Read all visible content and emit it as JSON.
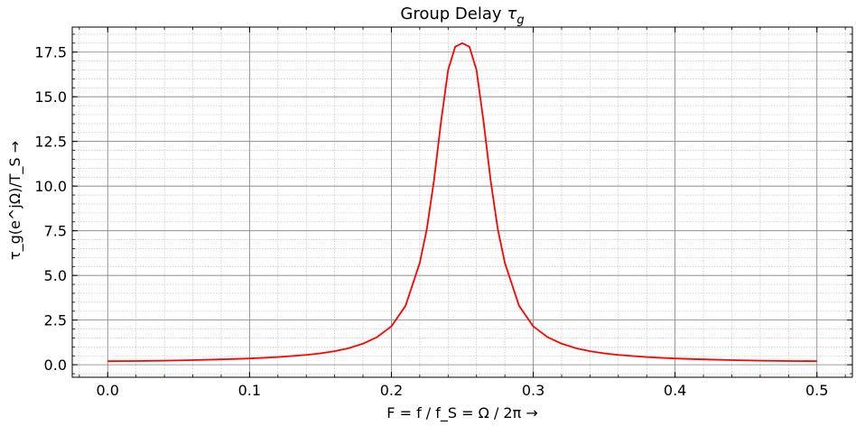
{
  "chart_data": {
    "type": "line",
    "title": "Group Delay τ_g",
    "title_main": "Group Delay",
    "title_symbol": "τ",
    "title_sub": "g",
    "xlabel": "F = f / f_S = Ω / 2π →",
    "ylabel": "τ_g(e^jΩ)/T_S →",
    "xlim": [
      -0.025,
      0.525
    ],
    "ylim": [
      -0.7,
      18.9
    ],
    "x_ticks": [
      0.0,
      0.1,
      0.2,
      0.3,
      0.4,
      0.5
    ],
    "x_tick_labels": [
      "0.0",
      "0.1",
      "0.2",
      "0.3",
      "0.4",
      "0.5"
    ],
    "y_ticks": [
      0.0,
      2.5,
      5.0,
      7.5,
      10.0,
      12.5,
      15.0,
      17.5
    ],
    "y_tick_labels": [
      "0.0",
      "2.5",
      "5.0",
      "7.5",
      "10.0",
      "12.5",
      "15.0",
      "17.5"
    ],
    "grid": true,
    "minor_grid": true,
    "series": [
      {
        "color": "#ff0000",
        "x": [
          0.0,
          0.02,
          0.04,
          0.06,
          0.08,
          0.1,
          0.12,
          0.14,
          0.15,
          0.16,
          0.17,
          0.18,
          0.19,
          0.2,
          0.21,
          0.22,
          0.225,
          0.23,
          0.235,
          0.24,
          0.245,
          0.25,
          0.255,
          0.26,
          0.265,
          0.27,
          0.275,
          0.28,
          0.29,
          0.3,
          0.31,
          0.32,
          0.33,
          0.34,
          0.35,
          0.36,
          0.38,
          0.4,
          0.42,
          0.44,
          0.46,
          0.48,
          0.5
        ],
        "y": [
          0.2,
          0.21,
          0.23,
          0.26,
          0.3,
          0.35,
          0.43,
          0.55,
          0.64,
          0.76,
          0.93,
          1.18,
          1.55,
          2.15,
          3.3,
          5.7,
          7.6,
          10.3,
          13.6,
          16.5,
          17.8,
          18.0,
          17.8,
          16.5,
          13.6,
          10.3,
          7.6,
          5.7,
          3.3,
          2.15,
          1.55,
          1.18,
          0.93,
          0.76,
          0.64,
          0.55,
          0.43,
          0.35,
          0.3,
          0.26,
          0.23,
          0.21,
          0.2
        ]
      }
    ]
  }
}
